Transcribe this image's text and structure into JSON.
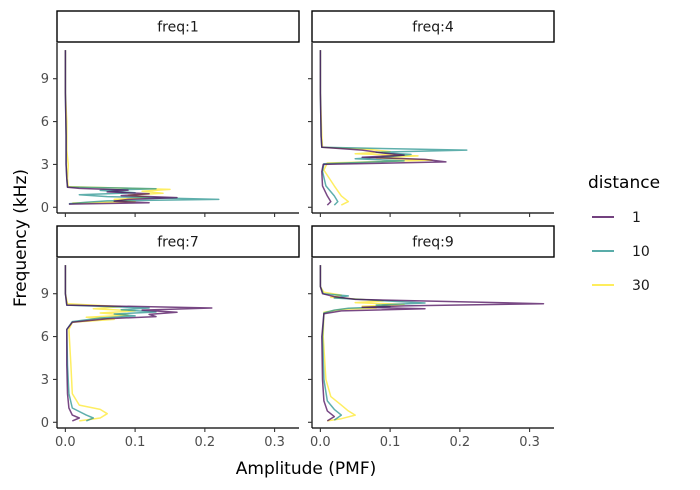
{
  "chart_data": {
    "type": "line",
    "xlabel": "Amplitude (PMF)",
    "ylabel": "Frequency (kHz)",
    "xlim": [
      -0.012,
      0.335
    ],
    "ylim": [
      -0.4,
      11.5
    ],
    "xticks": [
      0.0,
      0.1,
      0.2,
      0.3
    ],
    "xtick_labels": [
      "0.0",
      "0.1",
      "0.2",
      "0.3"
    ],
    "yticks": [
      0,
      3,
      6,
      9
    ],
    "ytick_labels": [
      "0",
      "3",
      "6",
      "9"
    ],
    "grid": false,
    "legend": {
      "title": "distance",
      "position": "right",
      "entries": [
        {
          "label": "1",
          "color": "#440154"
        },
        {
          "label": "10",
          "color": "#21908C"
        },
        {
          "label": "30",
          "color": "#FDE725"
        }
      ]
    },
    "panels": [
      {
        "label": "freq:1",
        "series": [
          {
            "distance": "1",
            "color": "#440154",
            "points": [
              [
                0.0,
                11
              ],
              [
                0.0,
                8
              ],
              [
                0.001,
                5
              ],
              [
                0.001,
                3
              ],
              [
                0.002,
                2
              ],
              [
                0.003,
                1.4
              ],
              [
                0.02,
                1.32
              ],
              [
                0.09,
                1.2
              ],
              [
                0.06,
                1.08
              ],
              [
                0.12,
                0.95
              ],
              [
                0.08,
                0.82
              ],
              [
                0.16,
                0.68
              ],
              [
                0.09,
                0.55
              ],
              [
                0.07,
                0.42
              ],
              [
                0.12,
                0.32
              ],
              [
                0.005,
                0.22
              ]
            ]
          },
          {
            "distance": "10",
            "color": "#21908C",
            "points": [
              [
                0.0,
                11
              ],
              [
                0.0,
                8
              ],
              [
                0.001,
                5
              ],
              [
                0.001,
                3
              ],
              [
                0.002,
                2
              ],
              [
                0.003,
                1.42
              ],
              [
                0.13,
                1.3
              ],
              [
                0.05,
                1.18
              ],
              [
                0.1,
                1.02
              ],
              [
                0.02,
                0.88
              ],
              [
                0.06,
                0.75
              ],
              [
                0.22,
                0.55
              ],
              [
                0.06,
                0.45
              ],
              [
                0.03,
                0.35
              ],
              [
                0.005,
                0.25
              ]
            ]
          },
          {
            "distance": "30",
            "color": "#FDE725",
            "points": [
              [
                0.0,
                11
              ],
              [
                0.0,
                8
              ],
              [
                0.002,
                6
              ],
              [
                0.002,
                4
              ],
              [
                0.004,
                3
              ],
              [
                0.003,
                2
              ],
              [
                0.004,
                1.45
              ],
              [
                0.15,
                1.25
              ],
              [
                0.11,
                1.12
              ],
              [
                0.14,
                0.98
              ],
              [
                0.09,
                0.85
              ],
              [
                0.12,
                0.7
              ],
              [
                0.07,
                0.55
              ],
              [
                0.1,
                0.4
              ],
              [
                0.01,
                0.3
              ]
            ]
          }
        ]
      },
      {
        "label": "freq:4",
        "series": [
          {
            "distance": "1",
            "color": "#440154",
            "points": [
              [
                0.0,
                11
              ],
              [
                0.0,
                8
              ],
              [
                0.001,
                5
              ],
              [
                0.002,
                4.2
              ],
              [
                0.06,
                4.0
              ],
              [
                0.09,
                3.8
              ],
              [
                0.12,
                3.65
              ],
              [
                0.06,
                3.5
              ],
              [
                0.15,
                3.35
              ],
              [
                0.18,
                3.18
              ],
              [
                0.004,
                3.0
              ],
              [
                0.002,
                2.5
              ],
              [
                0.003,
                1.5
              ],
              [
                0.01,
                0.8
              ],
              [
                0.015,
                0.4
              ],
              [
                0.01,
                0.15
              ]
            ]
          },
          {
            "distance": "10",
            "color": "#21908C",
            "points": [
              [
                0.0,
                11
              ],
              [
                0.0,
                8
              ],
              [
                0.001,
                5
              ],
              [
                0.002,
                4.2
              ],
              [
                0.21,
                4.0
              ],
              [
                0.08,
                3.85
              ],
              [
                0.13,
                3.7
              ],
              [
                0.1,
                3.55
              ],
              [
                0.05,
                3.4
              ],
              [
                0.12,
                3.25
              ],
              [
                0.005,
                3.05
              ],
              [
                0.003,
                2.5
              ],
              [
                0.008,
                1.5
              ],
              [
                0.02,
                0.8
              ],
              [
                0.025,
                0.4
              ],
              [
                0.02,
                0.15
              ]
            ]
          },
          {
            "distance": "30",
            "color": "#FDE725",
            "points": [
              [
                0.0,
                11
              ],
              [
                0.0,
                8
              ],
              [
                0.002,
                5
              ],
              [
                0.003,
                4.2
              ],
              [
                0.07,
                4.05
              ],
              [
                0.1,
                3.9
              ],
              [
                0.05,
                3.75
              ],
              [
                0.14,
                3.6
              ],
              [
                0.08,
                3.45
              ],
              [
                0.16,
                3.3
              ],
              [
                0.01,
                3.1
              ],
              [
                0.005,
                2.6
              ],
              [
                0.02,
                1.5
              ],
              [
                0.03,
                0.8
              ],
              [
                0.04,
                0.4
              ],
              [
                0.03,
                0.15
              ]
            ]
          }
        ]
      },
      {
        "label": "freq:7",
        "series": [
          {
            "distance": "1",
            "color": "#440154",
            "points": [
              [
                0.0,
                11
              ],
              [
                0.0,
                9
              ],
              [
                0.002,
                8.2
              ],
              [
                0.21,
                8.0
              ],
              [
                0.11,
                7.85
              ],
              [
                0.16,
                7.7
              ],
              [
                0.12,
                7.55
              ],
              [
                0.13,
                7.4
              ],
              [
                0.06,
                7.25
              ],
              [
                0.01,
                7.0
              ],
              [
                0.002,
                6.5
              ],
              [
                0.002,
                4
              ],
              [
                0.003,
                2
              ],
              [
                0.005,
                1
              ],
              [
                0.01,
                0.5
              ],
              [
                0.02,
                0.3
              ],
              [
                0.01,
                0.1
              ]
            ]
          },
          {
            "distance": "10",
            "color": "#21908C",
            "points": [
              [
                0.0,
                11
              ],
              [
                0.0,
                9
              ],
              [
                0.002,
                8.2
              ],
              [
                0.12,
                8.0
              ],
              [
                0.08,
                7.88
              ],
              [
                0.13,
                7.72
              ],
              [
                0.07,
                7.58
              ],
              [
                0.1,
                7.45
              ],
              [
                0.05,
                7.3
              ],
              [
                0.01,
                7.05
              ],
              [
                0.002,
                6.5
              ],
              [
                0.003,
                4
              ],
              [
                0.005,
                2
              ],
              [
                0.01,
                1
              ],
              [
                0.03,
                0.5
              ],
              [
                0.04,
                0.3
              ],
              [
                0.03,
                0.1
              ]
            ]
          },
          {
            "distance": "30",
            "color": "#FDE725",
            "points": [
              [
                0.0,
                11
              ],
              [
                0.0,
                9
              ],
              [
                0.003,
                8.3
              ],
              [
                0.08,
                8.1
              ],
              [
                0.04,
                7.95
              ],
              [
                0.1,
                7.8
              ],
              [
                0.05,
                7.65
              ],
              [
                0.09,
                7.5
              ],
              [
                0.03,
                7.35
              ],
              [
                0.07,
                7.2
              ],
              [
                0.01,
                7.0
              ],
              [
                0.005,
                6.5
              ],
              [
                0.008,
                4
              ],
              [
                0.01,
                2
              ],
              [
                0.02,
                1.2
              ],
              [
                0.05,
                0.9
              ],
              [
                0.06,
                0.6
              ],
              [
                0.05,
                0.3
              ],
              [
                0.02,
                0.1
              ]
            ]
          }
        ]
      },
      {
        "label": "freq:9",
        "series": [
          {
            "distance": "1",
            "color": "#440154",
            "points": [
              [
                0.0,
                11
              ],
              [
                0.0,
                9.5
              ],
              [
                0.003,
                9.0
              ],
              [
                0.02,
                8.8
              ],
              [
                0.05,
                8.6
              ],
              [
                0.32,
                8.3
              ],
              [
                0.12,
                8.15
              ],
              [
                0.06,
                8.05
              ],
              [
                0.15,
                7.95
              ],
              [
                0.03,
                7.8
              ],
              [
                0.005,
                7.6
              ],
              [
                0.002,
                6
              ],
              [
                0.003,
                3
              ],
              [
                0.005,
                1.5
              ],
              [
                0.01,
                0.8
              ],
              [
                0.02,
                0.4
              ],
              [
                0.01,
                0.1
              ]
            ]
          },
          {
            "distance": "10",
            "color": "#21908C",
            "points": [
              [
                0.0,
                11
              ],
              [
                0.0,
                9.5
              ],
              [
                0.004,
                9.0
              ],
              [
                0.04,
                8.85
              ],
              [
                0.02,
                8.7
              ],
              [
                0.15,
                8.35
              ],
              [
                0.08,
                8.2
              ],
              [
                0.1,
                8.1
              ],
              [
                0.04,
                7.98
              ],
              [
                0.02,
                7.85
              ],
              [
                0.005,
                7.65
              ],
              [
                0.003,
                6
              ],
              [
                0.005,
                3
              ],
              [
                0.01,
                1.5
              ],
              [
                0.02,
                0.9
              ],
              [
                0.03,
                0.5
              ],
              [
                0.02,
                0.15
              ]
            ]
          },
          {
            "distance": "30",
            "color": "#FDE725",
            "points": [
              [
                0.0,
                11
              ],
              [
                0.0,
                9.5
              ],
              [
                0.005,
                9.1
              ],
              [
                0.03,
                8.9
              ],
              [
                0.015,
                8.75
              ],
              [
                0.09,
                8.5
              ],
              [
                0.05,
                8.38
              ],
              [
                0.12,
                8.25
              ],
              [
                0.06,
                8.12
              ],
              [
                0.08,
                8.0
              ],
              [
                0.03,
                7.9
              ],
              [
                0.005,
                7.7
              ],
              [
                0.004,
                6
              ],
              [
                0.008,
                3
              ],
              [
                0.015,
                1.8
              ],
              [
                0.03,
                1.2
              ],
              [
                0.04,
                0.8
              ],
              [
                0.05,
                0.5
              ],
              [
                0.03,
                0.25
              ],
              [
                0.01,
                0.1
              ]
            ]
          }
        ]
      }
    ]
  }
}
